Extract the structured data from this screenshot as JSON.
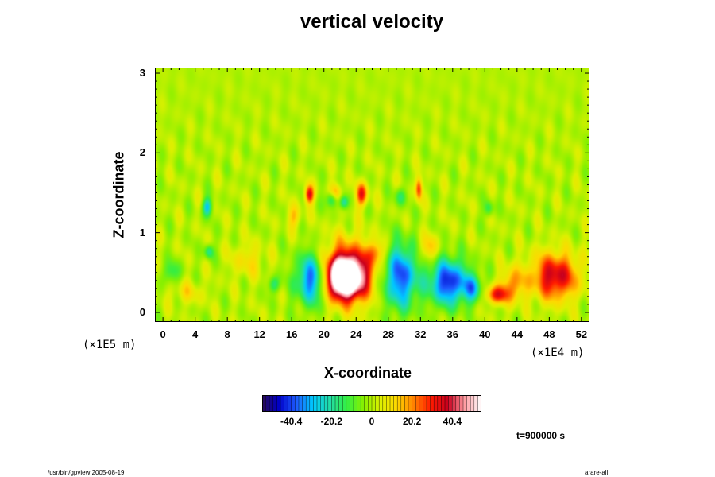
{
  "chart_data": {
    "type": "heatmap",
    "title": "vertical velocity",
    "xlabel": "X-coordinate",
    "ylabel": "Z-coordinate",
    "x_unit": "(×1E4 m)",
    "y_unit": "(×1E5 m)",
    "x_ticks": [
      "0",
      "4",
      "8",
      "12",
      "16",
      "20",
      "24",
      "28",
      "32",
      "36",
      "40",
      "44",
      "48",
      "52"
    ],
    "y_ticks": [
      "0",
      "1",
      "2",
      "3"
    ],
    "xlim": [
      -1,
      53
    ],
    "ylim": [
      -0.12,
      3.07
    ],
    "colorbar": {
      "ticks": [
        "-40.4",
        "-20.2",
        "0",
        "20.2",
        "40.4"
      ],
      "tick_values": [
        -40.4,
        -20.2,
        0,
        20.2,
        40.4
      ],
      "range": [
        -55,
        55
      ],
      "colors": [
        "#2a0a55",
        "#0000c8",
        "#1e5cff",
        "#00c8ff",
        "#22ddaa",
        "#33ee44",
        "#88f000",
        "#ddf000",
        "#ffd800",
        "#ff8000",
        "#ff1a00",
        "#c8001e",
        "#ff9aa0",
        "#ffffff"
      ]
    },
    "features": [
      {
        "x": 22.5,
        "z": 0.43,
        "value": 60,
        "sx": 1.6,
        "sz": 0.17
      },
      {
        "x": 23.0,
        "z": 0.5,
        "value": 40,
        "sx": 2.3,
        "sz": 0.26
      },
      {
        "x": 18.6,
        "z": 0.42,
        "value": -42,
        "sx": 1.4,
        "sz": 0.22
      },
      {
        "x": 29.5,
        "z": 0.45,
        "value": -40,
        "sx": 1.5,
        "sz": 0.28
      },
      {
        "x": 35.5,
        "z": 0.38,
        "value": -44,
        "sx": 1.7,
        "sz": 0.2
      },
      {
        "x": 38.5,
        "z": 0.3,
        "value": -25,
        "sx": 0.8,
        "sz": 0.12
      },
      {
        "x": 48.7,
        "z": 0.45,
        "value": 38,
        "sx": 2.0,
        "sz": 0.2
      },
      {
        "x": 41.5,
        "z": 0.22,
        "value": 30,
        "sx": 1.0,
        "sz": 0.08
      },
      {
        "x": 18.2,
        "z": 1.48,
        "value": 34,
        "sx": 0.4,
        "sz": 0.08
      },
      {
        "x": 24.7,
        "z": 1.48,
        "value": 32,
        "sx": 0.5,
        "sz": 0.1
      },
      {
        "x": 31.8,
        "z": 1.55,
        "value": 28,
        "sx": 0.3,
        "sz": 0.1
      },
      {
        "x": 21.5,
        "z": 1.5,
        "value": 22,
        "sx": 0.5,
        "sz": 0.08
      },
      {
        "x": 21.0,
        "z": 1.42,
        "value": -24,
        "sx": 0.5,
        "sz": 0.07
      },
      {
        "x": 22.5,
        "z": 1.38,
        "value": -22,
        "sx": 0.4,
        "sz": 0.06
      },
      {
        "x": 29.5,
        "z": 1.45,
        "value": -15,
        "sx": 0.5,
        "sz": 0.08
      },
      {
        "x": 5.5,
        "z": 1.32,
        "value": -28,
        "sx": 0.4,
        "sz": 0.08
      },
      {
        "x": 5.7,
        "z": 0.76,
        "value": -20,
        "sx": 0.4,
        "sz": 0.06
      },
      {
        "x": 1.0,
        "z": 0.5,
        "value": -14,
        "sx": 0.8,
        "sz": 0.1
      },
      {
        "x": 13.8,
        "z": 0.35,
        "value": -18,
        "sx": 0.5,
        "sz": 0.07
      },
      {
        "x": 40.5,
        "z": 1.3,
        "value": -16,
        "sx": 0.4,
        "sz": 0.07
      },
      {
        "x": 16.3,
        "z": 1.2,
        "value": 14,
        "sx": 0.6,
        "sz": 0.1
      },
      {
        "x": 33.0,
        "z": 0.8,
        "value": 16,
        "sx": 0.8,
        "sz": 0.12
      },
      {
        "x": 26.5,
        "z": 0.75,
        "value": 18,
        "sx": 0.8,
        "sz": 0.1
      },
      {
        "x": 43.5,
        "z": 0.35,
        "value": 20,
        "sx": 1.0,
        "sz": 0.15
      },
      {
        "x": 10.5,
        "z": 0.65,
        "value": 10,
        "sx": 1.5,
        "sz": 0.15
      },
      {
        "x": 3.0,
        "z": 0.25,
        "value": 9,
        "sx": 1.5,
        "sz": 0.1
      }
    ]
  },
  "time_label": "t=900000 s",
  "footer_left": "/usr/bin/gpview 2005-08-19",
  "footer_right": "arare-all"
}
